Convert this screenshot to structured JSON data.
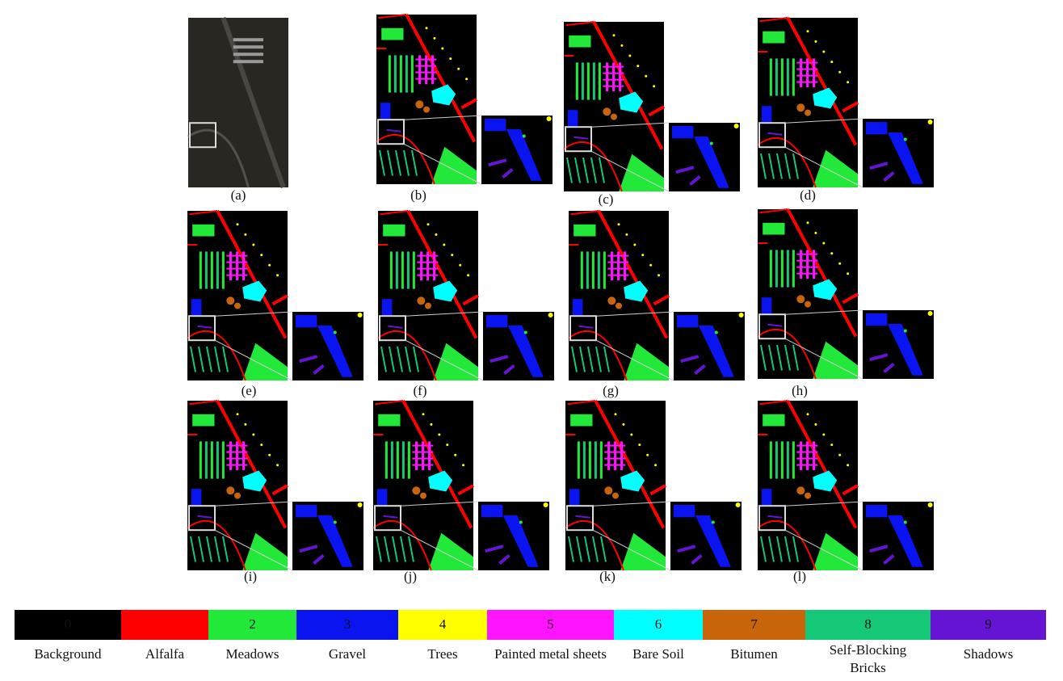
{
  "panels": [
    {
      "label": "(a)"
    },
    {
      "label": "(b)"
    },
    {
      "label": "(c)"
    },
    {
      "label": "(d)"
    },
    {
      "label": "(e)"
    },
    {
      "label": "(f)"
    },
    {
      "label": "(g)"
    },
    {
      "label": "(h)"
    },
    {
      "label": "(i)"
    },
    {
      "label": "(j)"
    },
    {
      "label": "(k)"
    },
    {
      "label": "(l)"
    }
  ],
  "legend": [
    {
      "code": "0",
      "name": "Background",
      "color": "#000000"
    },
    {
      "name": "Alfalfa",
      "color": "#ff0000"
    },
    {
      "code": "2",
      "name": "Meadows",
      "color": "#22e83a"
    },
    {
      "code": "3",
      "name": "Gravel",
      "color": "#0a14f0"
    },
    {
      "code": "4",
      "name": "Trees",
      "color": "#ffff00"
    },
    {
      "code": "5",
      "name": "Painted metal sheets",
      "color": "#ff14ff"
    },
    {
      "code": "6",
      "name": "Bare Soil",
      "color": "#00ffff"
    },
    {
      "code": "7",
      "name": "Bitumen",
      "color": "#c8640a"
    },
    {
      "code": "8",
      "name": "Self-Blocking Bricks",
      "color": "#14c878"
    },
    {
      "code": "9",
      "name": "Shadows",
      "color": "#6414d2"
    }
  ]
}
